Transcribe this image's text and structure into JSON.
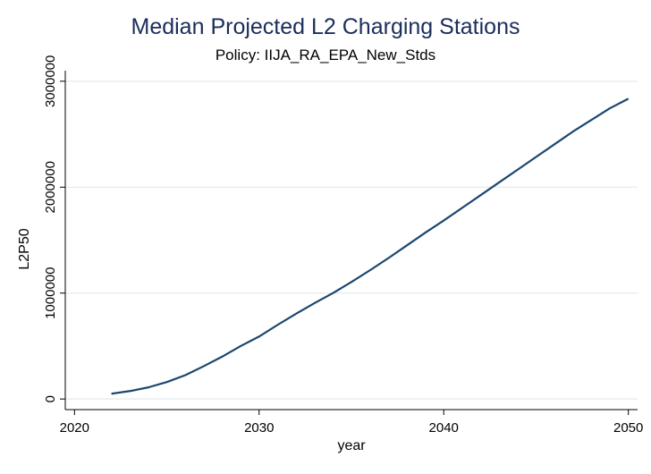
{
  "chart_data": {
    "type": "line",
    "title": "Median Projected L2 Charging Stations",
    "subtitle": "Policy: IIJA_RA_EPA_New_Stds",
    "xlabel": "year",
    "ylabel": "L2P50",
    "xlim": [
      2019.5,
      2050.5
    ],
    "ylim": [
      -100000,
      3100000
    ],
    "xticks": [
      2020,
      2030,
      2040,
      2050
    ],
    "xtick_labels": [
      "2020",
      "2030",
      "2040",
      "2050"
    ],
    "yticks": [
      0,
      1000000,
      2000000,
      3000000
    ],
    "ytick_labels": [
      "0",
      "1000000",
      "2000000",
      "3000000"
    ],
    "grid": "horizontal",
    "series": [
      {
        "color": "#1a476f",
        "x": [
          2022,
          2023,
          2024,
          2025,
          2026,
          2027,
          2028,
          2029,
          2030,
          2031,
          2032,
          2033,
          2034,
          2035,
          2036,
          2037,
          2038,
          2039,
          2040,
          2041,
          2042,
          2043,
          2044,
          2045,
          2046,
          2047,
          2048,
          2049,
          2050
        ],
        "y": [
          50000,
          75000,
          110000,
          160000,
          225000,
          310000,
          400000,
          500000,
          590000,
          700000,
          805000,
          905000,
          1000000,
          1105000,
          1215000,
          1330000,
          1450000,
          1570000,
          1685000,
          1805000,
          1925000,
          2045000,
          2165000,
          2285000,
          2405000,
          2525000,
          2635000,
          2745000,
          2835000
        ]
      }
    ]
  }
}
